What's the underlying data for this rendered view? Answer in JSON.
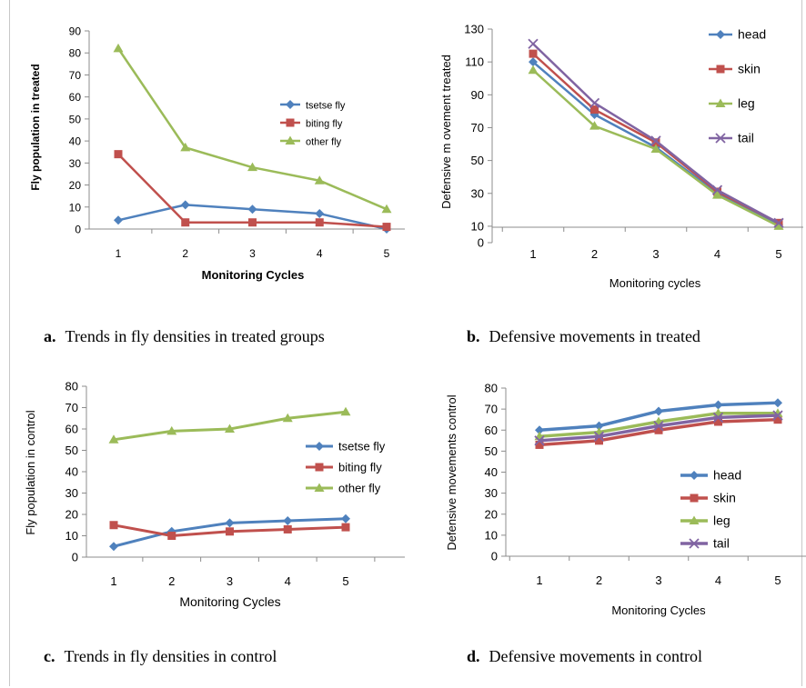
{
  "captions": [
    {
      "letter": "a.",
      "text": "Trends in fly densities in treated groups"
    },
    {
      "letter": "b.",
      "text": "Defensive movements in treated"
    },
    {
      "letter": "c.",
      "text": "Trends in fly densities in control"
    },
    {
      "letter": "d.",
      "text": "Defensive movements in control"
    }
  ],
  "colors": {
    "blue": "#4f81bd",
    "red": "#c0504d",
    "green": "#9bbb59",
    "purple": "#8064a2"
  },
  "chart_data": [
    {
      "type": "line",
      "title": "",
      "xlabel": "Monitoring Cycles",
      "ylabel": "Fly population in treated",
      "categories": [
        "1",
        "2",
        "3",
        "4",
        "5"
      ],
      "ylim": [
        0,
        90
      ],
      "yticks": [
        0,
        10,
        20,
        30,
        40,
        50,
        60,
        70,
        80,
        90
      ],
      "grid": false,
      "legend": "right-middle",
      "series": [
        {
          "name": "tsetse fly",
          "marker": "diamond",
          "color": "#4f81bd",
          "values": [
            4,
            11,
            9,
            7,
            0
          ]
        },
        {
          "name": "biting fly",
          "marker": "square",
          "color": "#c0504d",
          "values": [
            34,
            3,
            3,
            3,
            1
          ]
        },
        {
          "name": "other fly",
          "marker": "triangle",
          "color": "#9bbb59",
          "values": [
            82,
            37,
            28,
            22,
            9
          ]
        }
      ]
    },
    {
      "type": "line",
      "title": "",
      "xlabel": "Monitoring cycles",
      "ylabel": "Defensive m ovement treated",
      "categories": [
        "1",
        "2",
        "3",
        "4",
        "5"
      ],
      "ylim": [
        0,
        130
      ],
      "yticks": [
        0,
        10,
        30,
        50,
        70,
        90,
        110,
        130
      ],
      "grid": false,
      "legend": "right",
      "series": [
        {
          "name": "head",
          "marker": "diamond",
          "color": "#4f81bd",
          "values": [
            110,
            78,
            58,
            30,
            11
          ]
        },
        {
          "name": "skin",
          "marker": "square",
          "color": "#c0504d",
          "values": [
            115,
            81,
            61,
            31,
            12
          ]
        },
        {
          "name": "leg",
          "marker": "triangle",
          "color": "#9bbb59",
          "values": [
            105,
            71,
            57,
            29,
            10
          ]
        },
        {
          "name": "tail",
          "marker": "x",
          "color": "#8064a2",
          "values": [
            121,
            85,
            62,
            32,
            12
          ]
        }
      ]
    },
    {
      "type": "line",
      "title": "",
      "xlabel": "Monitoring Cycles",
      "ylabel": "Fly population in control",
      "categories": [
        "1",
        "2",
        "3",
        "4",
        "5"
      ],
      "ylim": [
        0,
        80
      ],
      "yticks": [
        0,
        10,
        20,
        30,
        40,
        50,
        60,
        70,
        80
      ],
      "grid": false,
      "legend": "right-middle",
      "series": [
        {
          "name": "tsetse fly",
          "marker": "diamond",
          "color": "#4f81bd",
          "values": [
            5,
            12,
            16,
            17,
            18
          ]
        },
        {
          "name": "biting fly",
          "marker": "square",
          "color": "#c0504d",
          "values": [
            15,
            10,
            12,
            13,
            14
          ]
        },
        {
          "name": "other fly",
          "marker": "triangle",
          "color": "#9bbb59",
          "values": [
            55,
            59,
            60,
            65,
            68
          ]
        }
      ]
    },
    {
      "type": "line",
      "title": "",
      "xlabel": "Monitoring  Cycles",
      "ylabel": "Defensive movements control",
      "categories": [
        "1",
        "2",
        "3",
        "4",
        "5"
      ],
      "ylim": [
        0,
        80
      ],
      "yticks": [
        0,
        10,
        20,
        30,
        40,
        50,
        60,
        70,
        80
      ],
      "grid": false,
      "legend": "bottom-right",
      "series": [
        {
          "name": "head",
          "marker": "diamond",
          "color": "#4f81bd",
          "values": [
            60,
            62,
            69,
            72,
            73
          ]
        },
        {
          "name": "skin",
          "marker": "square",
          "color": "#c0504d",
          "values": [
            53,
            55,
            60,
            64,
            65
          ]
        },
        {
          "name": "leg",
          "marker": "triangle",
          "color": "#9bbb59",
          "values": [
            57,
            59,
            64,
            68,
            68
          ]
        },
        {
          "name": "tail",
          "marker": "x",
          "color": "#8064a2",
          "values": [
            55,
            57,
            62,
            66,
            67
          ]
        }
      ]
    }
  ]
}
